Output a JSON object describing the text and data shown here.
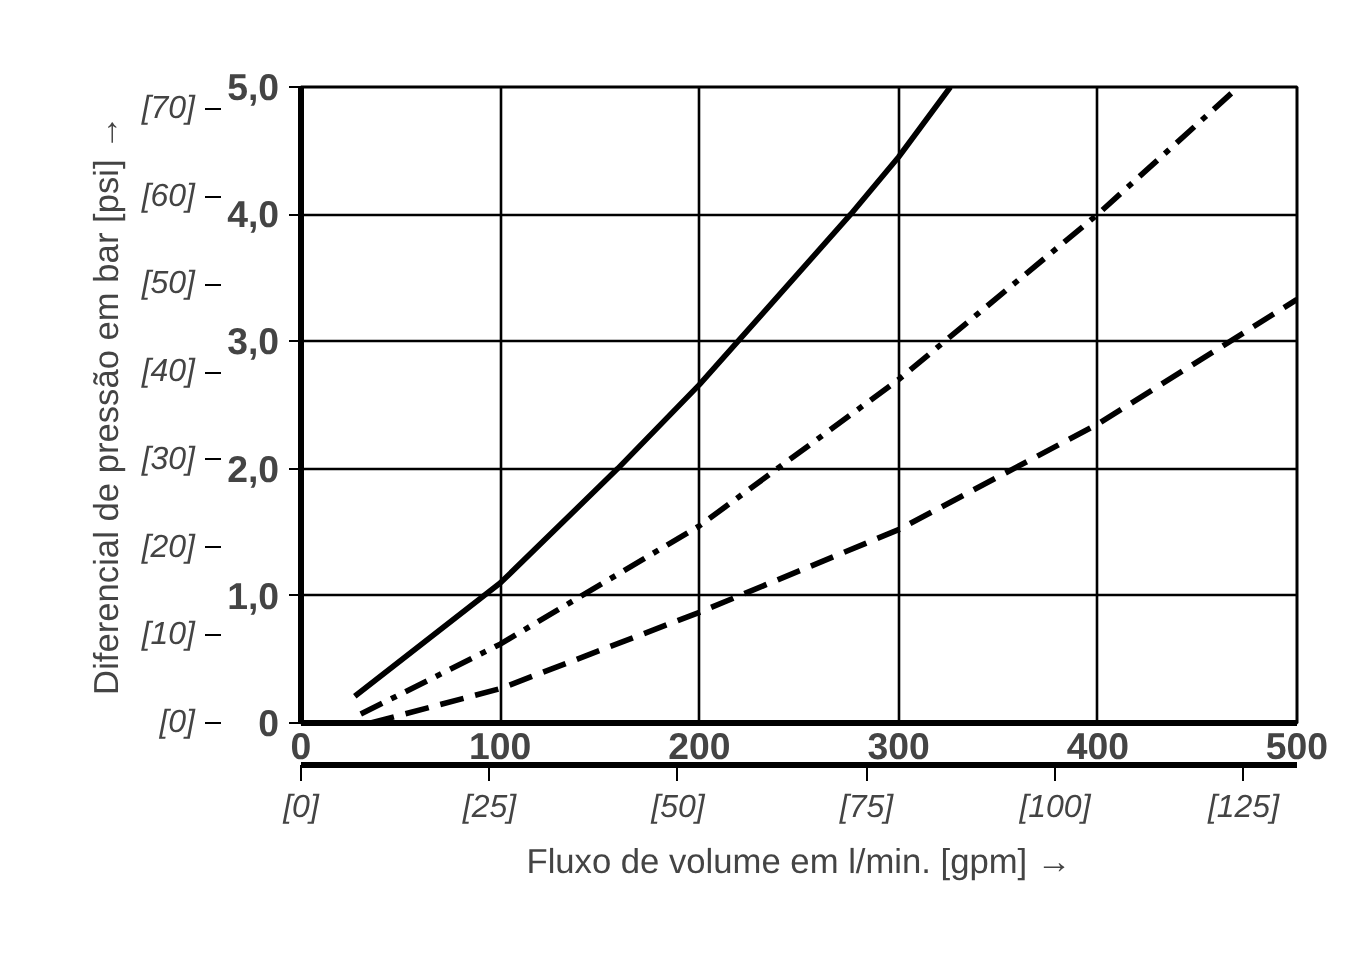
{
  "chart_data": {
    "type": "line",
    "x2label": "Fluxo de volume em l/min. [gpm] →",
    "y2label": "Diferencial de pressão em bar [psi] →",
    "xlim": [
      0,
      500
    ],
    "ylim": [
      0,
      5
    ],
    "xticks": [
      0,
      100,
      200,
      300,
      400,
      500
    ],
    "yticks": [
      {
        "value": 0,
        "label": "0"
      },
      {
        "value": 1,
        "label": "1,0"
      },
      {
        "value": 2,
        "label": "2,0"
      },
      {
        "value": 3,
        "label": "3,0"
      },
      {
        "value": 4,
        "label": "4,0"
      },
      {
        "value": 5,
        "label": "5,0"
      }
    ],
    "x2lim": [
      0,
      132.1
    ],
    "x2ticks": [
      {
        "value": 0,
        "label": "[0]"
      },
      {
        "value": 25,
        "label": "[25]"
      },
      {
        "value": 50,
        "label": "[50]"
      },
      {
        "value": 75,
        "label": "[75]"
      },
      {
        "value": 100,
        "label": "[100]"
      },
      {
        "value": 125,
        "label": "[125]"
      }
    ],
    "y2lim": [
      0,
      72.5
    ],
    "y2ticks": [
      {
        "value": 0,
        "label": "[0]"
      },
      {
        "value": 10,
        "label": "[10]"
      },
      {
        "value": 20,
        "label": "[20]"
      },
      {
        "value": 30,
        "label": "[30]"
      },
      {
        "value": 40,
        "label": "[40]"
      },
      {
        "value": 50,
        "label": "[50]"
      },
      {
        "value": 60,
        "label": "[60]"
      },
      {
        "value": 70,
        "label": "[70]"
      }
    ],
    "grid": true,
    "marker": "none",
    "series": [
      {
        "color": "#000000",
        "line_style": "solid",
        "x": [
          27,
          100,
          159,
          200,
          276,
          300,
          326
        ],
        "values": [
          0.21,
          1.1,
          2.0,
          2.66,
          4.0,
          4.45,
          5.0
        ]
      },
      {
        "color": "#000000",
        "line_style": "dashdot",
        "x": [
          30,
          100,
          200,
          300,
          400,
          467
        ],
        "values": [
          0.07,
          0.62,
          1.55,
          2.7,
          4.0,
          4.95
        ]
      },
      {
        "color": "#000000",
        "line_style": "dashed",
        "x": [
          35,
          100,
          200,
          300,
          400,
          500
        ],
        "values": [
          0.0,
          0.27,
          0.87,
          1.52,
          2.35,
          3.33
        ]
      }
    ]
  }
}
